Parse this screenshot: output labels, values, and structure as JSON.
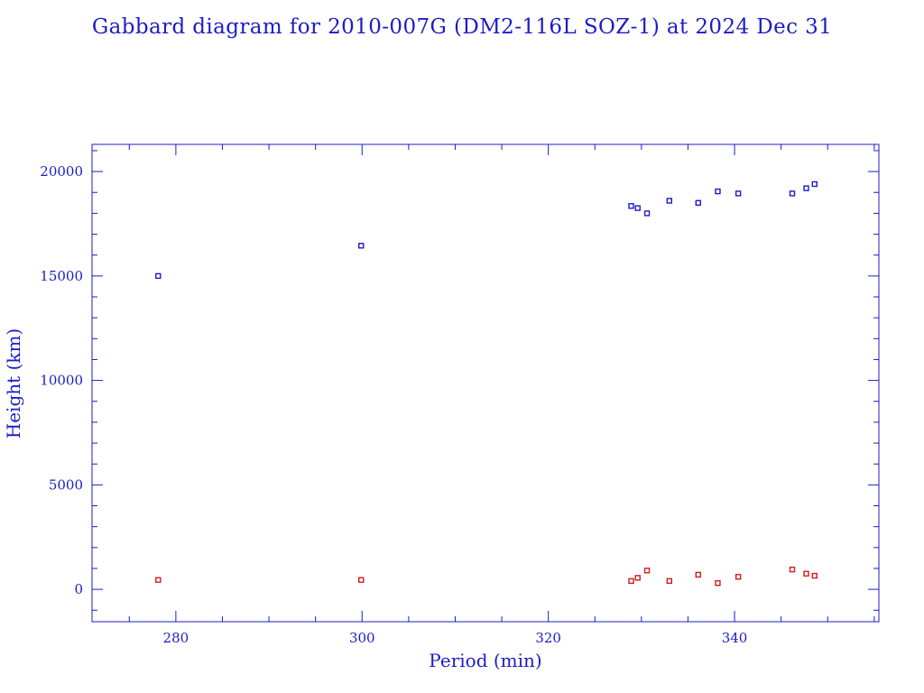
{
  "chart_data": {
    "type": "scatter",
    "title": "Gabbard diagram for 2010-007G (DM2-116L SOZ-1) at 2024 Dec 31",
    "xlabel": "Period (min)",
    "ylabel": "Height (km)",
    "xlim": [
      271,
      355.5
    ],
    "ylim": [
      -1550,
      21300
    ],
    "x_ticks": [
      280,
      300,
      320,
      340
    ],
    "x_tick_labels": [
      "280",
      "300",
      "320",
      "340"
    ],
    "y_ticks": [
      0,
      5000,
      10000,
      15000,
      20000
    ],
    "y_tick_labels": [
      "0",
      "5000",
      "10000",
      "15000",
      "20000"
    ],
    "x_minor_step": 5,
    "y_minor_step": 1000,
    "grid": false,
    "colors": {
      "axes": "#1c1cc8",
      "text": "#1c1cc8"
    },
    "series": [
      {
        "color": "#1c1cc8",
        "x": [
          278.1,
          299.9,
          328.9,
          329.6,
          330.6,
          333.0,
          336.1,
          338.2,
          340.4,
          346.2,
          347.7,
          348.6
        ],
        "y": [
          15000,
          16450,
          18350,
          18250,
          18000,
          18600,
          18500,
          19050,
          18950,
          18950,
          19200,
          19400
        ]
      },
      {
        "color": "#d01c1c",
        "x": [
          278.1,
          299.9,
          328.9,
          329.6,
          330.6,
          333.0,
          336.1,
          338.2,
          340.4,
          346.2,
          347.7,
          348.6
        ],
        "y": [
          450,
          450,
          400,
          550,
          900,
          400,
          700,
          300,
          600,
          950,
          750,
          650
        ]
      }
    ]
  }
}
